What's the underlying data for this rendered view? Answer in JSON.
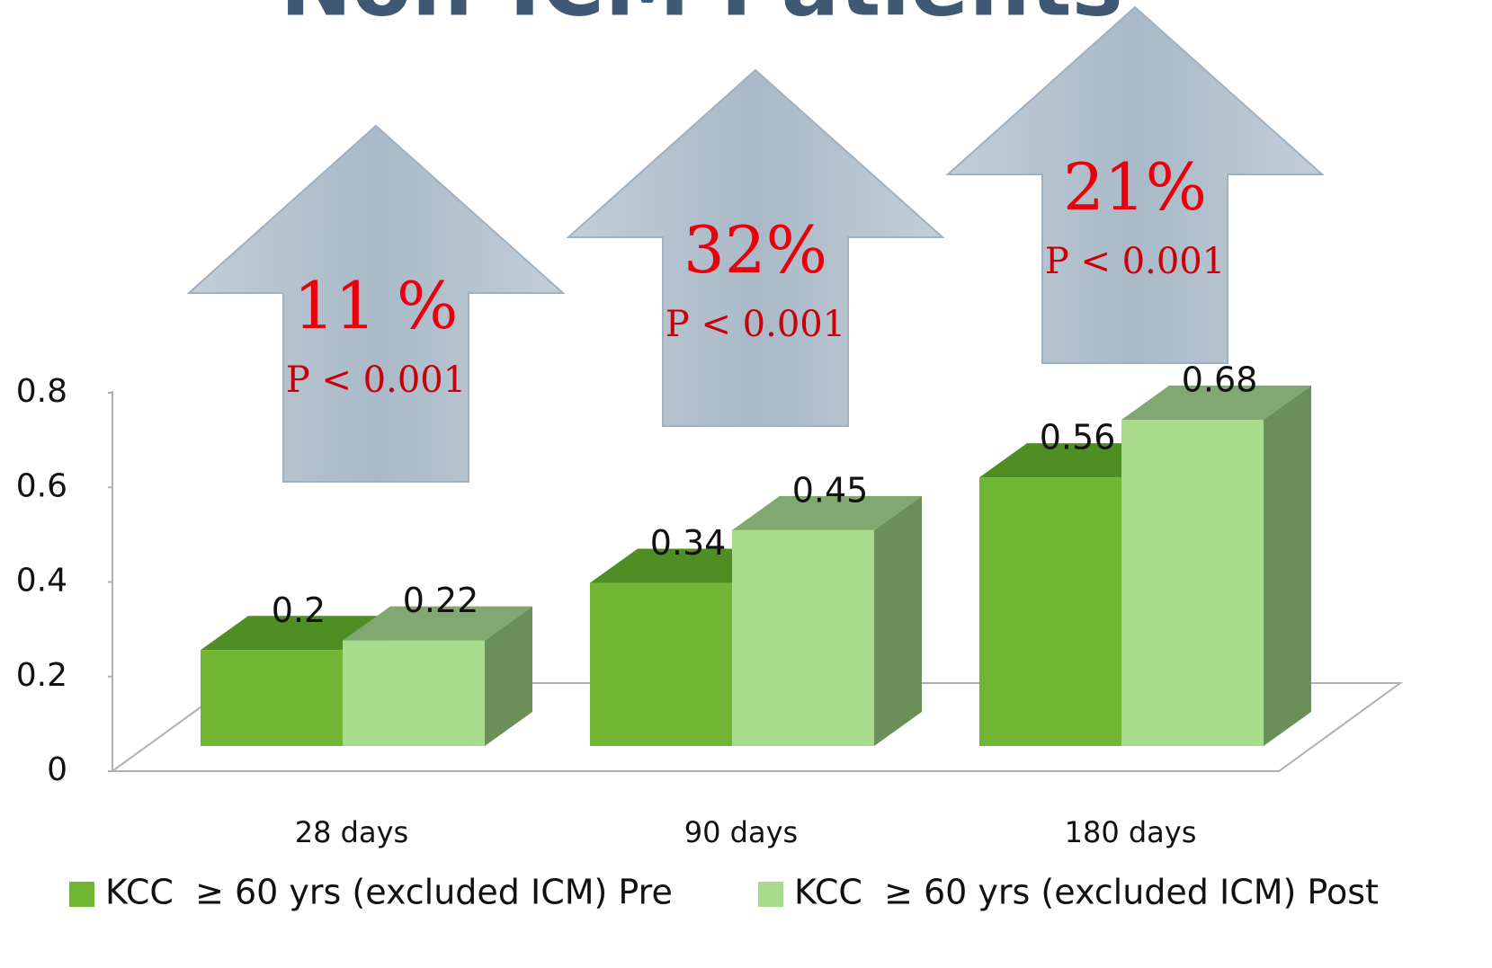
{
  "chart_data": {
    "type": "bar3d",
    "title": "Non-ICM Patients",
    "categories": [
      "28 days",
      "90 days",
      "180 days"
    ],
    "series": [
      {
        "name": "KCC  ≥ 60 yrs (excluded ICM) Pre",
        "color": "#70b633",
        "values": [
          0.2,
          0.34,
          0.56
        ]
      },
      {
        "name": "KCC  ≥ 60 yrs (excluded ICM) Post",
        "color": "#a8dc8c",
        "values": [
          0.22,
          0.45,
          0.68
        ]
      }
    ],
    "ylim": [
      0,
      0.8
    ],
    "yticks": [
      0,
      0.2,
      0.4,
      0.6,
      0.8
    ],
    "annotations": [
      {
        "change": "11 %",
        "pvalue": "P < 0.001"
      },
      {
        "change": "32%",
        "pvalue": "P < 0.001"
      },
      {
        "change": "21%",
        "pvalue": "P < 0.001"
      }
    ]
  }
}
